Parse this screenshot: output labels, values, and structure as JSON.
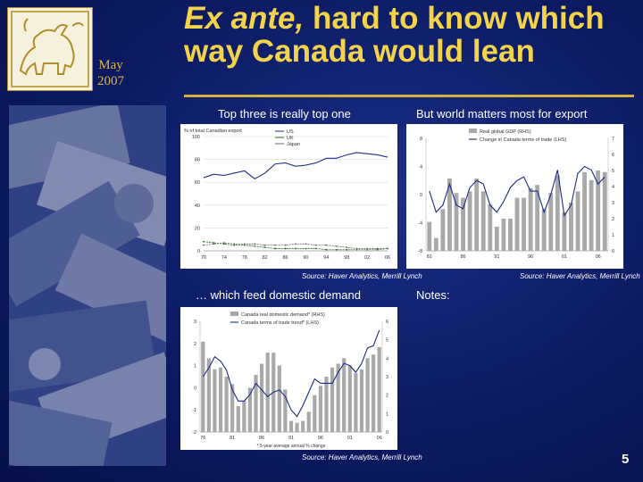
{
  "slide": {
    "date_month": "May",
    "date_year": "2007",
    "title_italic": "Ex ante,",
    "title_rest": " hard to know which way Canada would lean",
    "subtitle_left": "Top three is really top one",
    "subtitle_right": "But world matters most for export",
    "subtitle_bottom_left": "… which feed domestic demand",
    "notes_label": "Notes:",
    "page_number": "5",
    "bg_color": "#0c1a62",
    "title_color": "#f2d34a"
  },
  "chart_data": [
    {
      "type": "line",
      "ylabel": "% of total Canadian export",
      "legend": [
        "US",
        "UK",
        "Japan"
      ],
      "x_ticks": [
        "70",
        "74",
        "78",
        "82",
        "86",
        "90",
        "94",
        "98",
        "02",
        "06"
      ],
      "y_ticks": [
        0,
        20,
        40,
        60,
        80,
        100
      ],
      "ylim": [
        0,
        100
      ],
      "x": [
        1970,
        1972,
        1974,
        1976,
        1978,
        1980,
        1982,
        1984,
        1986,
        1988,
        1990,
        1992,
        1994,
        1996,
        1998,
        2000,
        2002,
        2004,
        2006
      ],
      "series": [
        {
          "name": "US",
          "color": "#1f2d8a",
          "values": [
            64,
            67,
            66,
            68,
            70,
            63,
            68,
            76,
            77,
            74,
            75,
            77,
            81,
            81,
            84,
            86,
            85,
            84,
            82
          ]
        },
        {
          "name": "UK",
          "color": "#2a6f2a",
          "values": [
            8,
            7,
            6,
            5,
            5,
            4,
            3,
            2,
            2,
            2,
            2,
            2,
            1,
            1,
            1,
            1,
            1,
            1,
            2
          ]
        },
        {
          "name": "Japan",
          "color": "#6a6a6a",
          "values": [
            5,
            6,
            7,
            6,
            6,
            6,
            5,
            5,
            5,
            6,
            6,
            5,
            5,
            4,
            3,
            2,
            2,
            2,
            2
          ]
        }
      ],
      "source": "Source: Haver Analytics, Merrill Lynch"
    },
    {
      "type": "bar",
      "legend": [
        "Real global GDP (RHS)",
        "Change in Canada terms of trade (LHS)"
      ],
      "x_ticks": [
        "81",
        "86",
        "91",
        "96",
        "01",
        "06"
      ],
      "y_ticks_left": [
        -8,
        -4,
        0,
        4,
        8
      ],
      "ylim_left": [
        -8,
        8
      ],
      "y_ticks_right": [
        0,
        1,
        2,
        3,
        4,
        5,
        6,
        7
      ],
      "ylim_right": [
        0,
        7
      ],
      "x": [
        1981,
        1982,
        1983,
        1984,
        1985,
        1986,
        1987,
        1988,
        1989,
        1990,
        1991,
        1992,
        1993,
        1994,
        1995,
        1996,
        1997,
        1998,
        1999,
        2000,
        2001,
        2002,
        2003,
        2004,
        2005,
        2006,
        2007
      ],
      "series": [
        {
          "name": "Real global GDP (RHS)",
          "axis": "right",
          "values": [
            1.8,
            0.8,
            2.6,
            4.5,
            3.6,
            3.3,
            3.7,
            4.5,
            3.7,
            2.9,
            1.5,
            2.0,
            2.0,
            3.3,
            3.3,
            3.9,
            4.1,
            2.6,
            3.6,
            4.7,
            2.4,
            3.0,
            3.7,
            4.9,
            4.4,
            5.0,
            4.9
          ]
        },
        {
          "name": "Change in Canada terms of trade (LHS)",
          "axis": "left",
          "values": [
            0.5,
            -2.5,
            -1.5,
            1.5,
            -1.5,
            -2.0,
            1.0,
            2.0,
            1.5,
            -1.5,
            -2.5,
            -1.0,
            1.0,
            2.0,
            2.5,
            0.5,
            0.5,
            -2.5,
            0.0,
            3.5,
            -3.0,
            -1.5,
            3.0,
            4.0,
            3.5,
            1.5,
            2.5
          ]
        }
      ],
      "source": "Source: Haver Analytics, Merrill Lynch"
    },
    {
      "type": "bar",
      "legend": [
        "Canada real domestic demand* (RHS)",
        "Canada terms of trade trend* (LHS)"
      ],
      "x_ticks": [
        "76",
        "81",
        "86",
        "91",
        "96",
        "01",
        "06"
      ],
      "y_ticks_left": [
        -2,
        -1,
        0,
        1,
        2,
        3
      ],
      "ylim_left": [
        -2,
        3
      ],
      "y_ticks_right": [
        0,
        1,
        2,
        3,
        4,
        5,
        6
      ],
      "ylim_right": [
        0,
        6
      ],
      "footnote": "* 5-year average annual % change",
      "x": [
        1976,
        1977,
        1978,
        1979,
        1980,
        1981,
        1982,
        1983,
        1984,
        1985,
        1986,
        1987,
        1988,
        1989,
        1990,
        1991,
        1992,
        1993,
        1994,
        1995,
        1996,
        1997,
        1998,
        1999,
        2000,
        2001,
        2002,
        2003,
        2004,
        2005,
        2006
      ],
      "series": [
        {
          "name": "Canada real domestic demand* (RHS)",
          "axis": "right",
          "values": [
            4.9,
            4.0,
            3.4,
            3.5,
            3.0,
            2.6,
            1.4,
            1.7,
            2.4,
            3.1,
            3.7,
            4.3,
            4.3,
            3.6,
            2.3,
            0.6,
            0.5,
            0.6,
            1.1,
            2.0,
            2.5,
            3.0,
            3.5,
            3.7,
            4.0,
            3.6,
            3.2,
            3.4,
            4.0,
            4.2,
            4.6
          ]
        },
        {
          "name": "Canada terms of trade trend* (LHS)",
          "axis": "left",
          "values": [
            0.5,
            0.9,
            1.4,
            1.2,
            0.8,
            -0.1,
            -0.6,
            -0.6,
            -0.3,
            0.2,
            -0.1,
            -0.4,
            -0.2,
            -0.1,
            -0.4,
            -1.0,
            -1.3,
            -0.8,
            -0.2,
            0.4,
            0.2,
            0.2,
            0.2,
            0.7,
            1.1,
            1.0,
            0.7,
            1.1,
            1.8,
            1.9,
            2.6
          ]
        }
      ],
      "source": "Source: Haver Analytics, Merrill Lynch"
    }
  ]
}
